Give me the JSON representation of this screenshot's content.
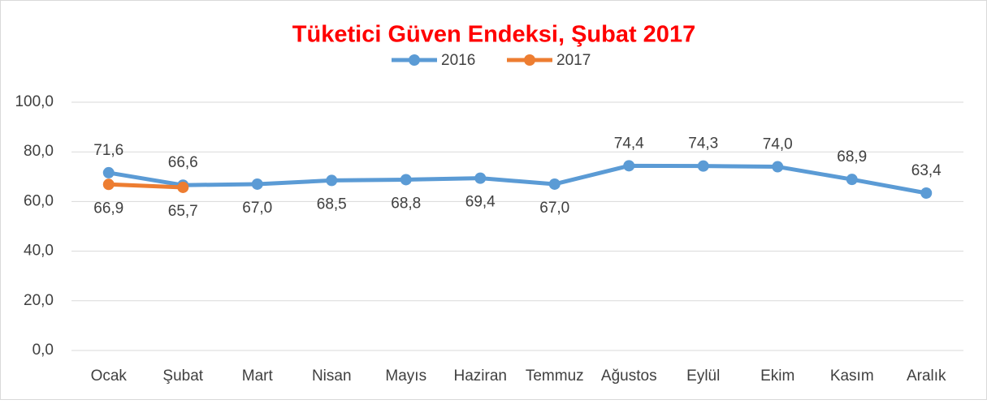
{
  "chart_data": {
    "type": "line",
    "title": "Tüketici Güven Endeksi, Şubat 2017",
    "categories": [
      "Ocak",
      "Şubat",
      "Mart",
      "Nisan",
      "Mayıs",
      "Haziran",
      "Temmuz",
      "Ağustos",
      "Eylül",
      "Ekim",
      "Kasım",
      "Aralık"
    ],
    "series": [
      {
        "name": "2016",
        "color": "#5B9BD5",
        "values": [
          71.6,
          66.6,
          67.0,
          68.5,
          68.8,
          69.4,
          67.0,
          74.4,
          74.3,
          74.0,
          68.9,
          63.4
        ],
        "value_labels": [
          "71,6",
          "66,6",
          "67,0",
          "68,5",
          "68,8",
          "69,4",
          "67,0",
          "74,4",
          "74,3",
          "74,0",
          "68,9",
          "63,4"
        ]
      },
      {
        "name": "2017",
        "color": "#ED7D31",
        "values": [
          66.9,
          65.7,
          null,
          null,
          null,
          null,
          null,
          null,
          null,
          null,
          null,
          null
        ],
        "value_labels": [
          "66,9",
          "65,7",
          null,
          null,
          null,
          null,
          null,
          null,
          null,
          null,
          null,
          null
        ]
      }
    ],
    "ylim": [
      0,
      100
    ],
    "yticks": [
      {
        "value": 0,
        "label": "0,0"
      },
      {
        "value": 20,
        "label": "20,0"
      },
      {
        "value": 40,
        "label": "40,0"
      },
      {
        "value": 60,
        "label": "60,0"
      },
      {
        "value": 80,
        "label": "80,0"
      },
      {
        "value": 100,
        "label": "100,0"
      }
    ],
    "grid": true,
    "legend": "top"
  }
}
